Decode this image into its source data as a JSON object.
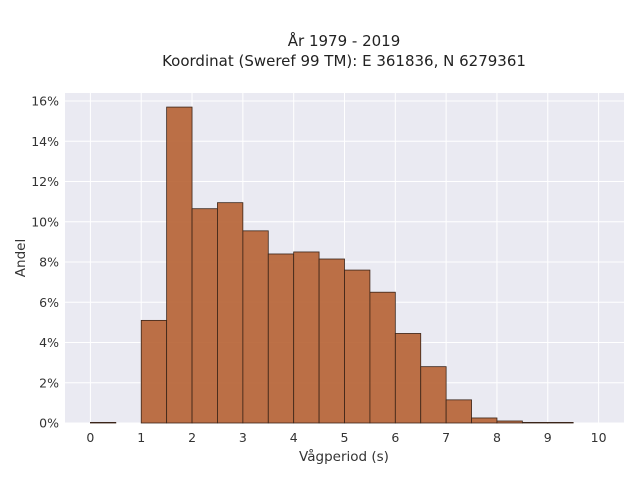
{
  "chart_data": {
    "type": "bar",
    "title_lines": [
      "År 1979 - 2019",
      "Koordinat (Sweref 99 TM): E 361836, N 6279361"
    ],
    "xlabel": "Vågperiod (s)",
    "ylabel": "Andel",
    "xlim": [
      -0.5,
      10.5
    ],
    "ylim": [
      0,
      16.4
    ],
    "xticks": [
      0,
      1,
      2,
      3,
      4,
      5,
      6,
      7,
      8,
      9,
      10
    ],
    "yticks": [
      0,
      2,
      4,
      6,
      8,
      10,
      12,
      14,
      16
    ],
    "ytick_suffix": "%",
    "bin_width": 0.5,
    "grid": true,
    "bars": [
      {
        "x": 0.0,
        "value": 0.03
      },
      {
        "x": 1.0,
        "value": 5.1
      },
      {
        "x": 1.5,
        "value": 15.7
      },
      {
        "x": 2.0,
        "value": 10.65
      },
      {
        "x": 2.5,
        "value": 10.95
      },
      {
        "x": 3.0,
        "value": 9.55
      },
      {
        "x": 3.5,
        "value": 8.4
      },
      {
        "x": 4.0,
        "value": 8.5
      },
      {
        "x": 4.5,
        "value": 8.15
      },
      {
        "x": 5.0,
        "value": 7.6
      },
      {
        "x": 5.5,
        "value": 6.5
      },
      {
        "x": 6.0,
        "value": 4.45
      },
      {
        "x": 6.5,
        "value": 2.8
      },
      {
        "x": 7.0,
        "value": 1.15
      },
      {
        "x": 7.5,
        "value": 0.25
      },
      {
        "x": 8.0,
        "value": 0.1
      },
      {
        "x": 8.5,
        "value": 0.03
      },
      {
        "x": 9.0,
        "value": 0.03
      }
    ],
    "colors": {
      "bar_fill": "#b66233",
      "bar_stroke": "#3a2418",
      "plot_bg": "#eaeaf2",
      "grid": "#ffffff"
    }
  }
}
